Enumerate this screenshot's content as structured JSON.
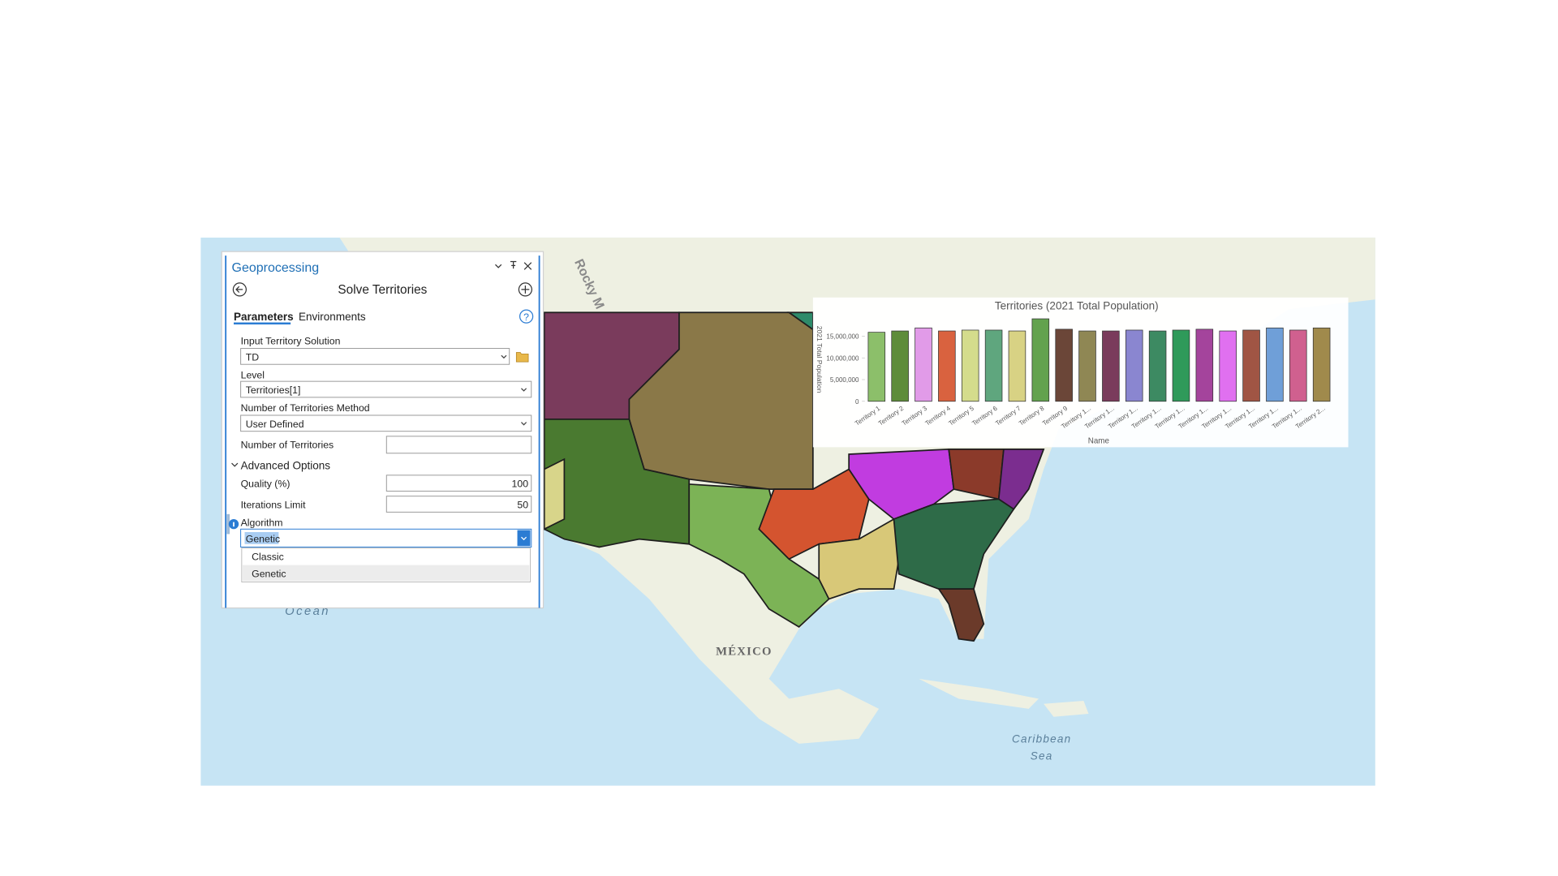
{
  "panel": {
    "title": "Geoprocessing",
    "tool": "Solve Territories",
    "tabs": [
      "Parameters",
      "Environments"
    ],
    "fields": {
      "input_label": "Input Territory Solution",
      "input_value": "TD",
      "level_label": "Level",
      "level_value": "Territories[1]",
      "method_label": "Number of Territories Method",
      "method_value": "User Defined",
      "count_label": "Number of Territories",
      "advanced": "Advanced Options",
      "quality_label": "Quality (%)",
      "quality_value": "100",
      "iterations_label": "Iterations Limit",
      "iterations_value": "50",
      "algorithm_label": "Algorithm",
      "algorithm_value": "Genetic"
    },
    "dropdown": [
      "Classic",
      "Genetic"
    ]
  },
  "map": {
    "mountains": "Rocky M",
    "country": "MÉXICO",
    "sea": [
      "Caribbean",
      "Sea"
    ],
    "ocean": "Ocean"
  },
  "chart_data": {
    "type": "bar",
    "title": "Territories (2021 Total Population)",
    "x_label": "Name",
    "y_label": "2021 Total Population",
    "categories": [
      "Territory 1",
      "Territory 2",
      "Territory 3",
      "Territory 4",
      "Territory 5",
      "Territory 6",
      "Territory 7",
      "Territory 8",
      "Territory 9",
      "Territory 1...",
      "Territory 1...",
      "Territory 1...",
      "Territory 1...",
      "Territory 1...",
      "Territory 1...",
      "Territory 1...",
      "Territory 1...",
      "Territory 1...",
      "Territory 1...",
      "Territory 2..."
    ],
    "values": [
      15900000,
      16200000,
      16900000,
      16200000,
      16400000,
      16400000,
      16200000,
      19000000,
      16600000,
      16200000,
      16200000,
      16400000,
      16200000,
      16400000,
      16600000,
      16200000,
      16400000,
      16900000,
      16400000,
      16900000
    ],
    "colors": [
      "#8cbf6a",
      "#5e8c3a",
      "#e19be8",
      "#d9623f",
      "#d4dc8c",
      "#5fa67e",
      "#d8d284",
      "#63a24e",
      "#6b4638",
      "#8f8754",
      "#7a3b5c",
      "#8a86d0",
      "#3d8a62",
      "#2f9a5a",
      "#a4449c",
      "#e070f0",
      "#a05544",
      "#6f9fd8",
      "#d0608f",
      "#a08a4c"
    ],
    "ylim": [
      0,
      20000000
    ],
    "yticks": [
      0,
      {
        "value": 5000000,
        "label": "5,000,000"
      },
      {
        "value": 10000000,
        "label": "10,000,000"
      },
      {
        "value": 15000000,
        "label": "15,000,000"
      }
    ]
  }
}
